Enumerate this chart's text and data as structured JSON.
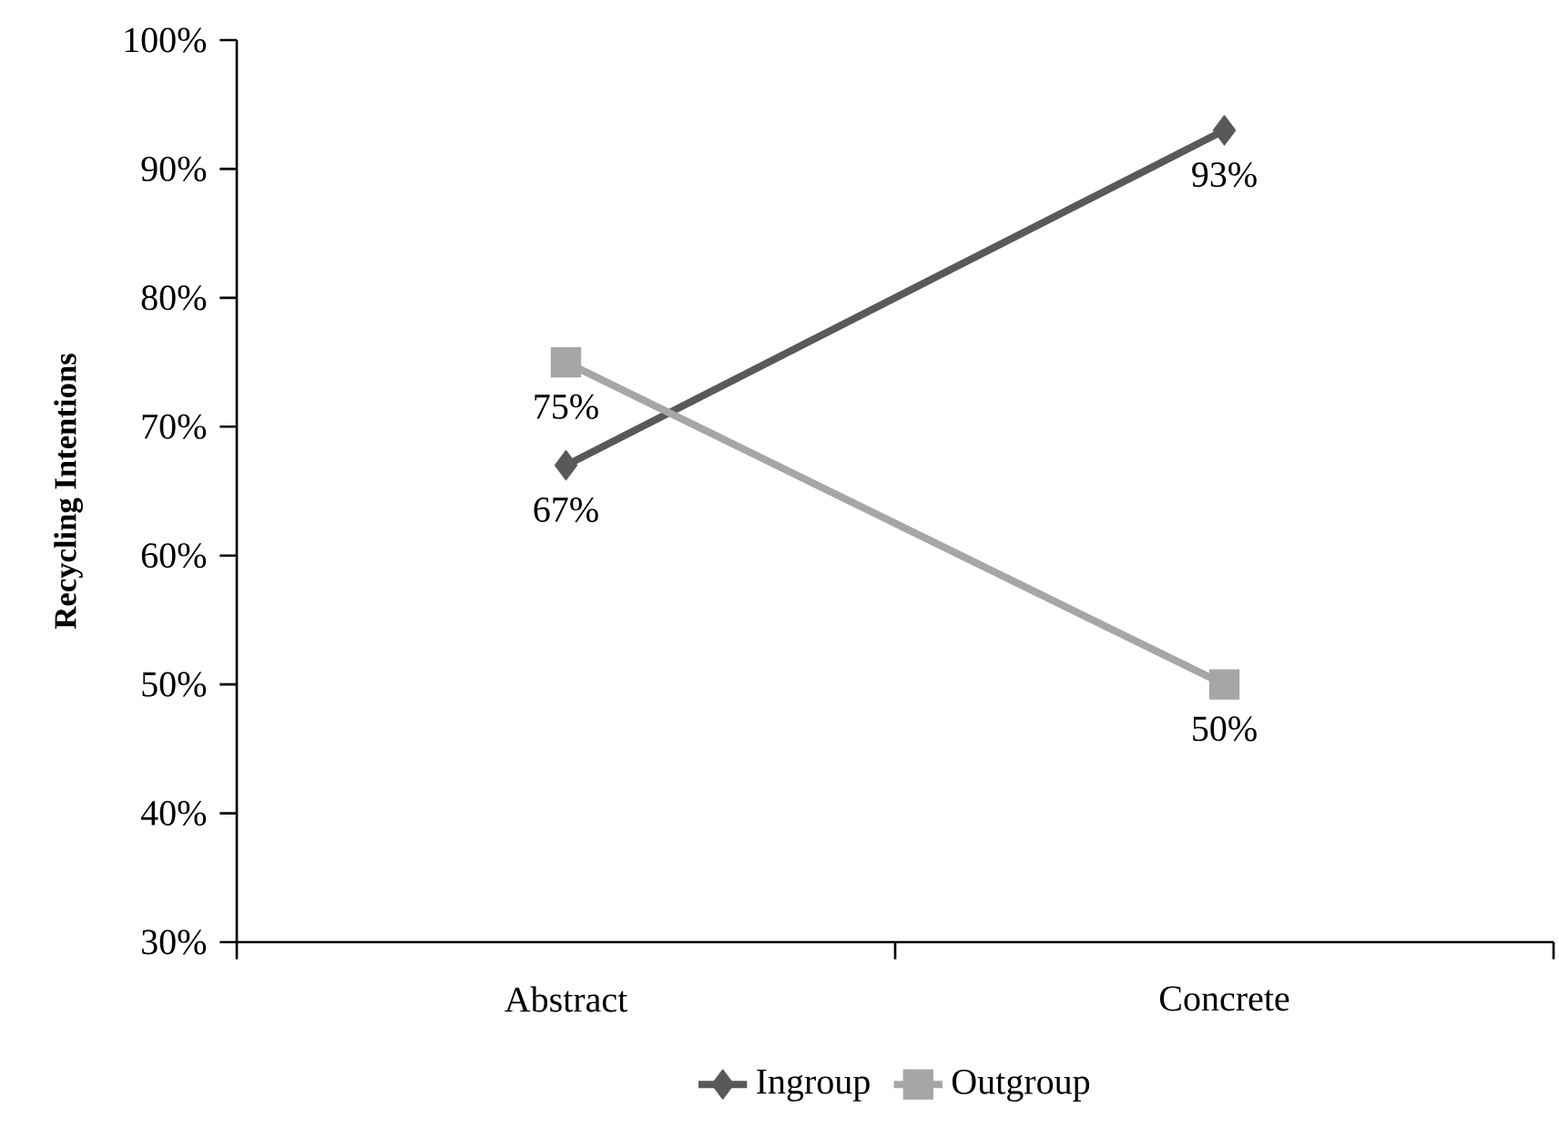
{
  "chart_data": {
    "type": "line",
    "ylabel": "Recycling Intentions",
    "categories": [
      "Abstract",
      "Concrete"
    ],
    "series": [
      {
        "name": "Ingroup",
        "color": "#595959",
        "marker": "diamond",
        "values": [
          67,
          93
        ],
        "value_labels": [
          "67%",
          "93%"
        ]
      },
      {
        "name": "Outgroup",
        "color": "#a6a6a6",
        "marker": "square",
        "values": [
          75,
          50
        ],
        "value_labels": [
          "75%",
          "50%"
        ]
      }
    ],
    "ylim": [
      30,
      100
    ],
    "yticks": [
      {
        "value": 30,
        "label": "30%"
      },
      {
        "value": 40,
        "label": "40%"
      },
      {
        "value": 50,
        "label": "50%"
      },
      {
        "value": 60,
        "label": "60%"
      },
      {
        "value": 70,
        "label": "70%"
      },
      {
        "value": 80,
        "label": "80%"
      },
      {
        "value": 90,
        "label": "90%"
      },
      {
        "value": 100,
        "label": "100%"
      }
    ],
    "grid": false,
    "legend": "bottom",
    "line_style": "solid"
  }
}
